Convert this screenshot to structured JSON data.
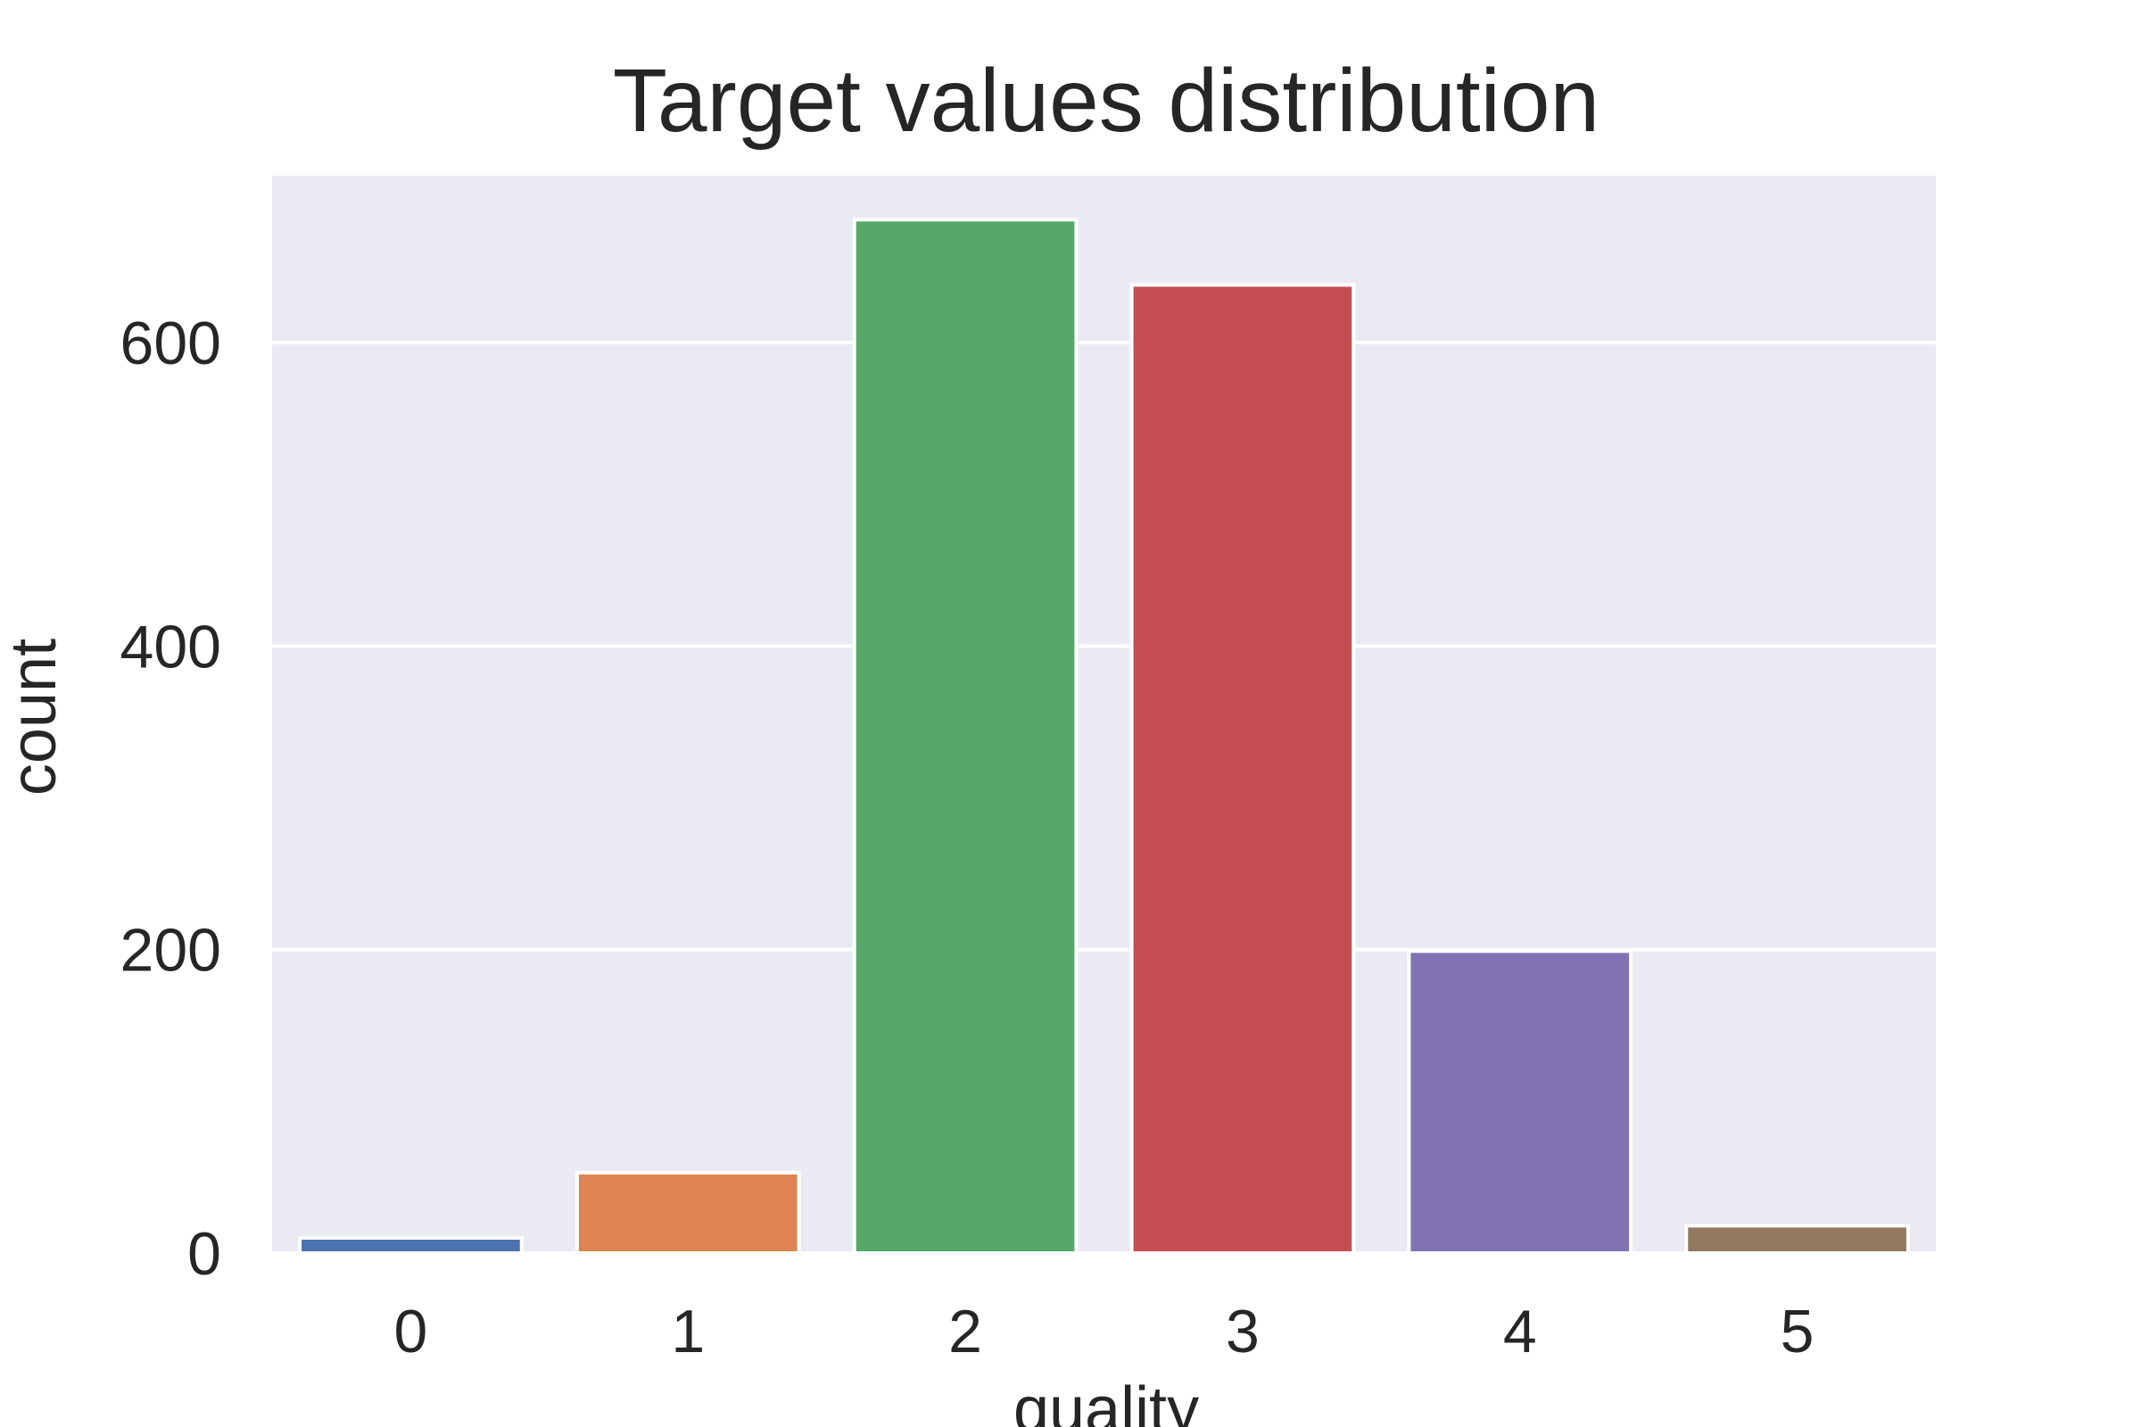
{
  "chart_data": {
    "type": "bar",
    "title": "Target values distribution",
    "xlabel": "quality",
    "ylabel": "count",
    "categories": [
      "0",
      "1",
      "2",
      "3",
      "4",
      "5"
    ],
    "values": [
      10,
      53,
      681,
      638,
      199,
      18
    ],
    "ylim": [
      0,
      710
    ],
    "yticks": [
      0,
      200,
      400,
      600
    ],
    "ytick_labels": [
      "0",
      "200",
      "400",
      "600"
    ],
    "grid": true,
    "legend": "none",
    "colors": [
      "#4c72b0",
      "#dd8452",
      "#55a868",
      "#c44e52",
      "#8172b3",
      "#937860"
    ],
    "background": "#eaeaf2",
    "gridline_color": "#ffffff"
  }
}
